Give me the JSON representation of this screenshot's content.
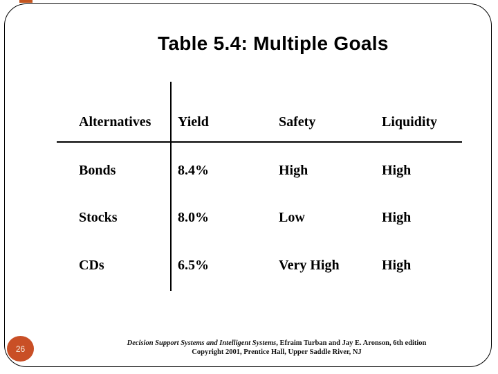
{
  "slide": {
    "title": "Table 5.4: Multiple Goals",
    "page_number": "26"
  },
  "table": {
    "headers": [
      "Alternatives",
      "Yield",
      "Safety",
      "Liquidity"
    ],
    "rows": [
      [
        "Bonds",
        "8.4%",
        "High",
        "High"
      ],
      [
        "Stocks",
        "8.0%",
        "Low",
        "High"
      ],
      [
        "CDs",
        "6.5%",
        "Very High",
        "High"
      ]
    ]
  },
  "footer": {
    "book_title": "Decision Support Systems and Intelligent Systems",
    "line1_rest": ", Efraim Turban and Jay E. Aronson, 6th edition",
    "line2": "Copyright 2001, Prentice Hall, Upper Saddle River, NJ"
  },
  "colors": {
    "badge": "#C94F26",
    "accent": "#C3551F",
    "border": "#000000",
    "text": "#000000"
  }
}
